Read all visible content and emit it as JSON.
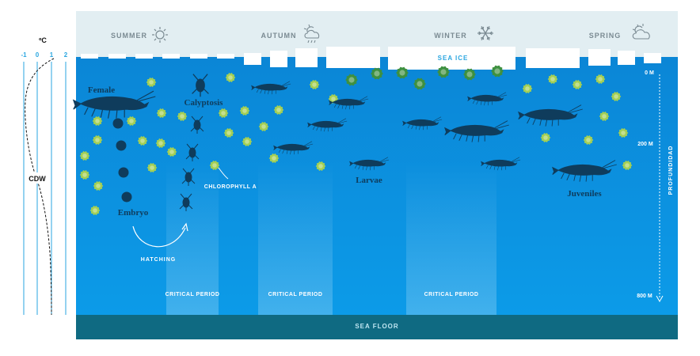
{
  "temperature": {
    "unit": "ºC",
    "ticks": [
      "-1",
      "0",
      "1",
      "2"
    ],
    "water_mass_label": "CDW"
  },
  "seasons": [
    {
      "label": "SUMMER",
      "icon": "sun-icon"
    },
    {
      "label": "AUTUMN",
      "icon": "sun-cloud-rain-icon"
    },
    {
      "label": "WINTER",
      "icon": "snowflake-icon"
    },
    {
      "label": "SPRING",
      "icon": "sun-cloud-icon"
    }
  ],
  "labels": {
    "sea_ice": "SEA ICE",
    "sea_floor": "SEA FLOOR",
    "female": "Female",
    "calyptosis": "Calyptosis",
    "embryo": "Embryo",
    "hatching": "HATCHING",
    "chlorophyll": "CHLOROPHYLL A",
    "larvae": "Larvae",
    "juveniles": "Juveniles",
    "critical_period": "CRITICAL PERIOD"
  },
  "depth": {
    "axis_label": "PROFUNDIDAD",
    "ticks": [
      "0 M",
      "200 M",
      "800 M"
    ]
  },
  "colors": {
    "water_top": "#0b86d6",
    "water_bottom": "#0a9ae6",
    "sky": "#e2eef2",
    "sea_floor": "#0f6a82",
    "krill": "#0f3c5c",
    "chlorophyll": "#a3cf55",
    "chlorophyll_ice": "#3e9040",
    "temp_line": "#2aa6e0"
  }
}
